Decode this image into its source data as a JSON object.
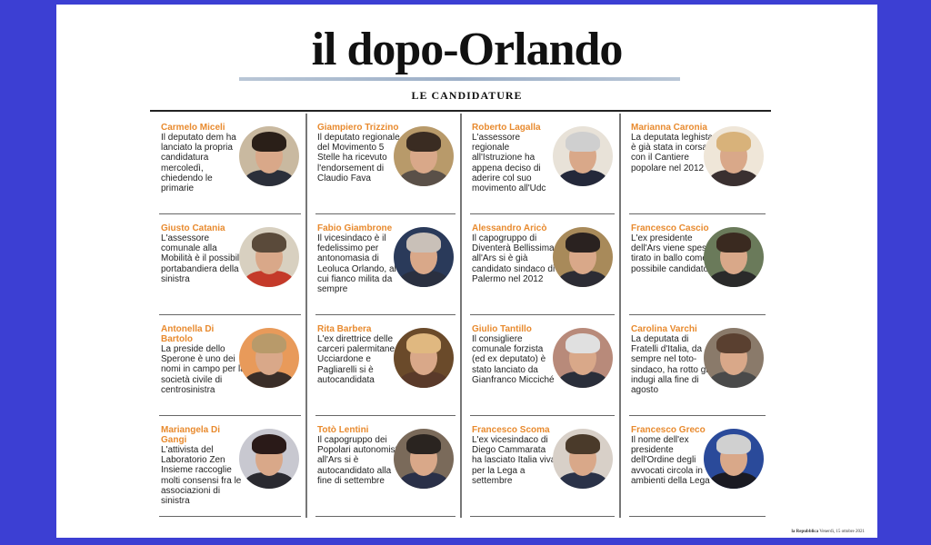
{
  "header": {
    "title": "il dopo-Orlando",
    "section": "LE CANDIDATURE"
  },
  "candidates": [
    {
      "name": "Carmelo Miceli",
      "desc": "Il deputato dem ha lanciato la propria candidatura mercoledì, chiedendo le primarie",
      "hair": "#2a1f18",
      "bg": "#c9b9a0",
      "body": "#2b2f3a"
    },
    {
      "name": "Giampiero Trizzino",
      "desc": "Il deputato regionale del Movimento 5 Stelle ha ricevuto l'endorsement di Claudio Fava",
      "hair": "#3a2c22",
      "bg": "#b89a6a",
      "body": "#5a5048"
    },
    {
      "name": "Roberto Lagalla",
      "desc": "L'assessore regionale all'Istruzione ha appena deciso di aderire col suo movimento all'Udc",
      "hair": "#cfcfcf",
      "bg": "#e8e2d8",
      "body": "#24283a"
    },
    {
      "name": "Marianna Caronia",
      "desc": "La deputata leghista è già stata in corsa con il Cantiere popolare nel 2012",
      "hair": "#d8b27a",
      "bg": "#efe6d8",
      "body": "#3a3030"
    },
    {
      "name": "Giusto Catania",
      "desc": "L'assessore comunale alla Mobilità è il possibile portabandiera della sinistra",
      "hair": "#5a4a3a",
      "bg": "#d8d0c0",
      "body": "#c43a2a"
    },
    {
      "name": "Fabio Giambrone",
      "desc": "Il vicesindaco è il fedelissimo per antonomasia di Leoluca Orlando, al cui fianco milita da sempre",
      "hair": "#c9c0b8",
      "bg": "#2a3a5a",
      "body": "#2a3040"
    },
    {
      "name": "Alessandro Aricò",
      "desc": "Il capogruppo di Diventerà Bellissima all'Ars si è già candidato sindaco di Palermo nel 2012",
      "hair": "#2a2220",
      "bg": "#a88a5a",
      "body": "#2c2c34"
    },
    {
      "name": "Francesco Cascio",
      "desc": "L'ex presidente dell'Ars viene spesso tirato in ballo come possibile candidato",
      "hair": "#3a2a20",
      "bg": "#6a7a5a",
      "body": "#2a2a2a"
    },
    {
      "name": "Antonella Di Bartolo",
      "desc": "La preside dello Sperone è uno dei nomi in campo per la società civile di centrosinistra",
      "hair": "#b89a6a",
      "bg": "#e89a5a",
      "body": "#3a2e28"
    },
    {
      "name": "Rita Barbera",
      "desc": "L'ex direttrice delle carceri palermitane Ucciardone e Pagliarelli si è autocandidata",
      "hair": "#e0b880",
      "bg": "#6a4a2a",
      "body": "#5a3a2a"
    },
    {
      "name": "Giulio Tantillo",
      "desc": "Il consigliere comunale forzista (ed ex deputato) è stato lanciato da Gianfranco Micciché",
      "hair": "#e0e0e0",
      "bg": "#b88a7a",
      "body": "#2a2e3a"
    },
    {
      "name": "Carolina Varchi",
      "desc": "La deputata di Fratelli d'Italia, da sempre nel toto-sindaco, ha rotto gli indugi alla fine di agosto",
      "hair": "#5a4030",
      "bg": "#8a7a6a",
      "body": "#4a4a4a"
    },
    {
      "name": "Mariangela Di Gangi",
      "desc": "L'attivista del Laboratorio Zen Insieme raccoglie molti consensi fra le associazioni di sinistra",
      "hair": "#2a1a18",
      "bg": "#c8c8d0",
      "body": "#2a2a30"
    },
    {
      "name": "Totò Lentini",
      "desc": "Il capogruppo dei Popolari autonomisti all'Ars si è autocandidato alla fine di settembre",
      "hair": "#2a2420",
      "bg": "#7a6a5a",
      "body": "#2a3048"
    },
    {
      "name": "Francesco Scoma",
      "desc": "L'ex vicesindaco di Diego Cammarata ha lasciato Italia viva per la Lega a settembre",
      "hair": "#4a3a2a",
      "bg": "#d8d0c8",
      "body": "#2a3248"
    },
    {
      "name": "Francesco Greco",
      "desc": "Il nome dell'ex presidente dell'Ordine degli avvocati circola in ambienti della Lega",
      "hair": "#d0d0d0",
      "bg": "#2a4a9a",
      "body": "#1a1a22"
    }
  ],
  "footer": {
    "brand": "la Repubblica",
    "date": "Venerdì, 15 ottobre 2021"
  },
  "colors": {
    "background": "#3c3fd3",
    "name_accent": "#e88a2e"
  }
}
